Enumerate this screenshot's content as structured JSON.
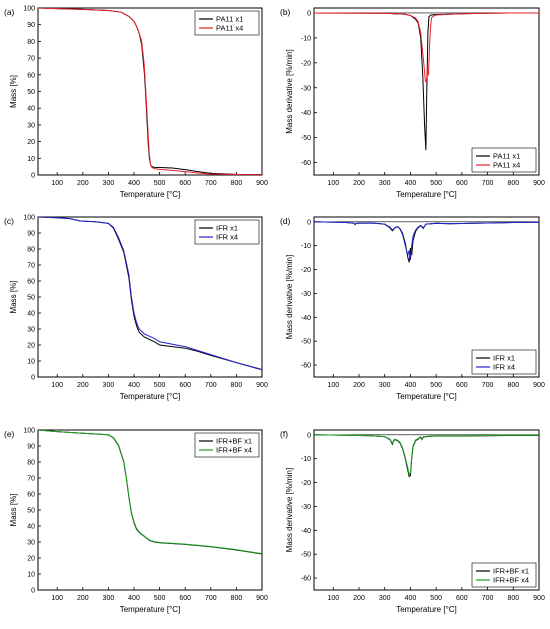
{
  "chart_data": [
    {
      "type": "line",
      "panel_label": "(a)",
      "xlabel": "Temperature [°C]",
      "ylabel": "Mass [%]",
      "xlim": [
        25,
        900
      ],
      "ylim": [
        0,
        100
      ],
      "xticks": [
        100,
        200,
        300,
        400,
        500,
        600,
        700,
        800,
        900
      ],
      "yticks": [
        0,
        10,
        20,
        30,
        40,
        50,
        60,
        70,
        80,
        90,
        100
      ],
      "legend_position": "top-right",
      "grid": false,
      "series": [
        {
          "name": "PA11 x1",
          "color": "#000000",
          "x": [
            25,
            100,
            200,
            300,
            350,
            380,
            400,
            410,
            420,
            430,
            440,
            445,
            450,
            455,
            460,
            465,
            470,
            480,
            500,
            550,
            600,
            650,
            700,
            800,
            900
          ],
          "y": [
            100,
            99.6,
            99.2,
            98.5,
            97.5,
            95,
            92,
            89,
            85,
            78,
            62,
            50,
            35,
            20,
            10,
            6,
            5,
            4.6,
            4.5,
            4.2,
            3.2,
            2,
            1,
            0.4,
            0.3
          ]
        },
        {
          "name": "PA11 x4",
          "color": "#e8202a",
          "x": [
            25,
            100,
            200,
            300,
            350,
            380,
            400,
            410,
            420,
            430,
            440,
            448,
            455,
            460,
            465,
            470,
            480,
            500,
            550,
            600,
            650,
            700,
            800,
            900
          ],
          "y": [
            100,
            99.6,
            99.2,
            98.5,
            97.5,
            95,
            92,
            89,
            85,
            80,
            66,
            45,
            25,
            12,
            6,
            4.5,
            3.8,
            3.4,
            2.8,
            2.0,
            1.2,
            0.6,
            0.3,
            0.2
          ]
        }
      ]
    },
    {
      "type": "line",
      "panel_label": "(b)",
      "xlabel": "Temperature [°C]",
      "ylabel": "Mass derivative [%/min]",
      "xlim": [
        25,
        900
      ],
      "ylim": [
        -65,
        2
      ],
      "xticks": [
        100,
        200,
        300,
        400,
        500,
        600,
        700,
        800,
        900
      ],
      "yticks": [
        0,
        -10,
        -20,
        -30,
        -40,
        -50,
        -60
      ],
      "legend_position": "bottom-right",
      "grid": false,
      "series": [
        {
          "name": "PA11 x1",
          "color": "#000000",
          "x": [
            25,
            300,
            380,
            400,
            420,
            430,
            440,
            448,
            455,
            460,
            463,
            468,
            472,
            480,
            500,
            550,
            600,
            700,
            800,
            900
          ],
          "y": [
            0,
            -0.1,
            -0.5,
            -1,
            -2.5,
            -4,
            -10,
            -25,
            -45,
            -55,
            -35,
            -8,
            -1.5,
            -0.8,
            -0.6,
            -0.5,
            -0.3,
            -0.1,
            0,
            0
          ]
        },
        {
          "name": "PA11 x4",
          "color": "#e8202a",
          "x": [
            25,
            300,
            380,
            400,
            420,
            430,
            440,
            450,
            458,
            462,
            466,
            470,
            474,
            478,
            482,
            490,
            500,
            550,
            600,
            700,
            800,
            900
          ],
          "y": [
            0,
            -0.1,
            -0.5,
            -1,
            -2,
            -3.5,
            -8,
            -18,
            -27,
            -28,
            -22,
            -25,
            -14,
            -6,
            -2,
            -1.2,
            -0.8,
            -0.5,
            -0.3,
            -0.1,
            0,
            0
          ]
        }
      ]
    },
    {
      "type": "line",
      "panel_label": "(c)",
      "xlabel": "Temperature [°C]",
      "ylabel": "Mass [%]",
      "xlim": [
        25,
        900
      ],
      "ylim": [
        0,
        100
      ],
      "xticks": [
        100,
        200,
        300,
        400,
        500,
        600,
        700,
        800,
        900
      ],
      "yticks": [
        0,
        10,
        20,
        30,
        40,
        50,
        60,
        70,
        80,
        90,
        100
      ],
      "legend_position": "top-right",
      "grid": false,
      "series": [
        {
          "name": "IFR x1",
          "color": "#000000",
          "x": [
            25,
            100,
            150,
            190,
            250,
            300,
            320,
            340,
            360,
            380,
            390,
            400,
            410,
            420,
            440,
            480,
            500,
            550,
            600,
            650,
            700,
            800,
            900
          ],
          "y": [
            100,
            99.5,
            99,
            97.5,
            97,
            96,
            93,
            86,
            78,
            62,
            48,
            38,
            32,
            28,
            25,
            22,
            20,
            19,
            18,
            16,
            13.5,
            9,
            4.5
          ]
        },
        {
          "name": "IFR x4",
          "color": "#2222cc",
          "x": [
            25,
            100,
            150,
            190,
            250,
            300,
            320,
            340,
            360,
            380,
            390,
            400,
            410,
            420,
            440,
            480,
            500,
            550,
            600,
            650,
            700,
            800,
            900
          ],
          "y": [
            100,
            99.5,
            99,
            97.5,
            97,
            96,
            93.5,
            87,
            79,
            64,
            50,
            40,
            34,
            30,
            27,
            24,
            22,
            20.5,
            19,
            16.5,
            14,
            9,
            4.7
          ]
        }
      ]
    },
    {
      "type": "line",
      "panel_label": "(d)",
      "xlabel": "Temperature [°C]",
      "ylabel": "Mass derivative [%/min]",
      "xlim": [
        25,
        900
      ],
      "ylim": [
        -65,
        2
      ],
      "xticks": [
        100,
        200,
        300,
        400,
        500,
        600,
        700,
        800,
        900
      ],
      "yticks": [
        0,
        -10,
        -20,
        -30,
        -40,
        -50,
        -60
      ],
      "legend_position": "bottom-right",
      "grid": false,
      "series": [
        {
          "name": "IFR x1",
          "color": "#000000",
          "x": [
            25,
            150,
            180,
            185,
            190,
            250,
            300,
            320,
            330,
            340,
            350,
            360,
            370,
            380,
            390,
            395,
            400,
            405,
            410,
            420,
            430,
            440,
            450,
            460,
            480,
            500,
            550,
            600,
            700,
            800,
            900
          ],
          "y": [
            0,
            -0.3,
            -0.6,
            -1.2,
            -0.6,
            -0.5,
            -1,
            -2.5,
            -3.8,
            -2.5,
            -2,
            -3,
            -5,
            -9,
            -15,
            -17,
            -11,
            -14,
            -8,
            -4,
            -2.5,
            -1.6,
            -2.8,
            -1,
            -0.8,
            -0.6,
            -0.8,
            -0.7,
            -0.5,
            -0.3,
            -0.2
          ]
        },
        {
          "name": "IFR x4",
          "color": "#2222cc",
          "x": [
            25,
            150,
            180,
            185,
            190,
            250,
            300,
            320,
            330,
            340,
            350,
            360,
            370,
            380,
            390,
            395,
            400,
            405,
            410,
            420,
            430,
            440,
            450,
            460,
            480,
            500,
            550,
            600,
            700,
            800,
            900
          ],
          "y": [
            0,
            -0.3,
            -0.6,
            -1,
            -0.6,
            -0.5,
            -1,
            -2.2,
            -3.5,
            -2.4,
            -2,
            -3.2,
            -5.5,
            -10,
            -14,
            -12,
            -16,
            -10,
            -6,
            -3.5,
            -2.2,
            -1.5,
            -2.5,
            -1,
            -0.8,
            -0.6,
            -0.8,
            -0.7,
            -0.5,
            -0.3,
            -0.2
          ]
        }
      ]
    },
    {
      "type": "line",
      "panel_label": "(e)",
      "xlabel": "Temperature [°C]",
      "ylabel": "Mass [%]",
      "xlim": [
        25,
        900
      ],
      "ylim": [
        0,
        100
      ],
      "xticks": [
        100,
        200,
        300,
        400,
        500,
        600,
        700,
        800,
        900
      ],
      "yticks": [
        0,
        10,
        20,
        30,
        40,
        50,
        60,
        70,
        80,
        90,
        100
      ],
      "legend_position": "top-right",
      "grid": false,
      "series": [
        {
          "name": "IFR+BF x1",
          "color": "#000000",
          "x": [
            25,
            100,
            200,
            250,
            300,
            320,
            340,
            360,
            370,
            380,
            390,
            400,
            410,
            420,
            440,
            460,
            480,
            500,
            600,
            700,
            800,
            900
          ],
          "y": [
            100,
            99,
            98,
            97.5,
            97,
            95,
            90,
            80,
            70,
            58,
            48,
            42,
            38,
            36,
            33.5,
            31,
            30,
            29.5,
            28.5,
            27,
            25,
            22.5
          ]
        },
        {
          "name": "IFR+BF x4",
          "color": "#1f9e1f",
          "x": [
            25,
            100,
            200,
            250,
            300,
            320,
            340,
            360,
            370,
            380,
            390,
            400,
            410,
            420,
            440,
            460,
            480,
            500,
            600,
            700,
            800,
            900
          ],
          "y": [
            100,
            99,
            98,
            97.5,
            97,
            95.2,
            90.5,
            80.5,
            70.5,
            58.5,
            48.5,
            42.5,
            38.5,
            36.2,
            33.7,
            31.2,
            30.2,
            29.7,
            28.7,
            27.2,
            25.2,
            22.7
          ]
        }
      ]
    },
    {
      "type": "line",
      "panel_label": "(f)",
      "xlabel": "Temperature [°C]",
      "ylabel": "Mass derivative [%/min]",
      "xlim": [
        25,
        900
      ],
      "ylim": [
        -65,
        2
      ],
      "xticks": [
        100,
        200,
        300,
        400,
        500,
        600,
        700,
        800,
        900
      ],
      "yticks": [
        0,
        -10,
        -20,
        -30,
        -40,
        -50,
        -60
      ],
      "legend_position": "bottom-right",
      "grid": false,
      "series": [
        {
          "name": "IFR+BF x1",
          "color": "#000000",
          "x": [
            25,
            150,
            250,
            300,
            320,
            330,
            335,
            340,
            350,
            360,
            370,
            380,
            390,
            395,
            400,
            405,
            410,
            420,
            430,
            440,
            445,
            450,
            460,
            480,
            500,
            600,
            700,
            800,
            900
          ],
          "y": [
            0,
            -0.2,
            -0.4,
            -0.8,
            -2,
            -4,
            -2.5,
            -2,
            -2.5,
            -3.5,
            -6,
            -10,
            -15,
            -17.5,
            -17,
            -10,
            -5,
            -2.5,
            -1.8,
            -1,
            -2,
            -1,
            -0.8,
            -0.6,
            -0.5,
            -0.5,
            -0.4,
            -0.3,
            -0.3
          ]
        },
        {
          "name": "IFR+BF x4",
          "color": "#1f9e1f",
          "x": [
            25,
            150,
            250,
            300,
            320,
            330,
            335,
            340,
            350,
            360,
            370,
            380,
            390,
            395,
            400,
            405,
            410,
            420,
            430,
            440,
            445,
            450,
            460,
            480,
            500,
            600,
            700,
            800,
            900
          ],
          "y": [
            0,
            -0.2,
            -0.4,
            -0.8,
            -1.8,
            -3.6,
            -2.3,
            -1.8,
            -2.3,
            -3.2,
            -5.6,
            -9.5,
            -14,
            -16.5,
            -16,
            -9.5,
            -4.6,
            -2.2,
            -1.6,
            -0.8,
            -1.8,
            -0.8,
            -0.7,
            -0.5,
            -0.4,
            -0.4,
            -0.3,
            -0.2,
            -0.2
          ]
        }
      ]
    }
  ]
}
